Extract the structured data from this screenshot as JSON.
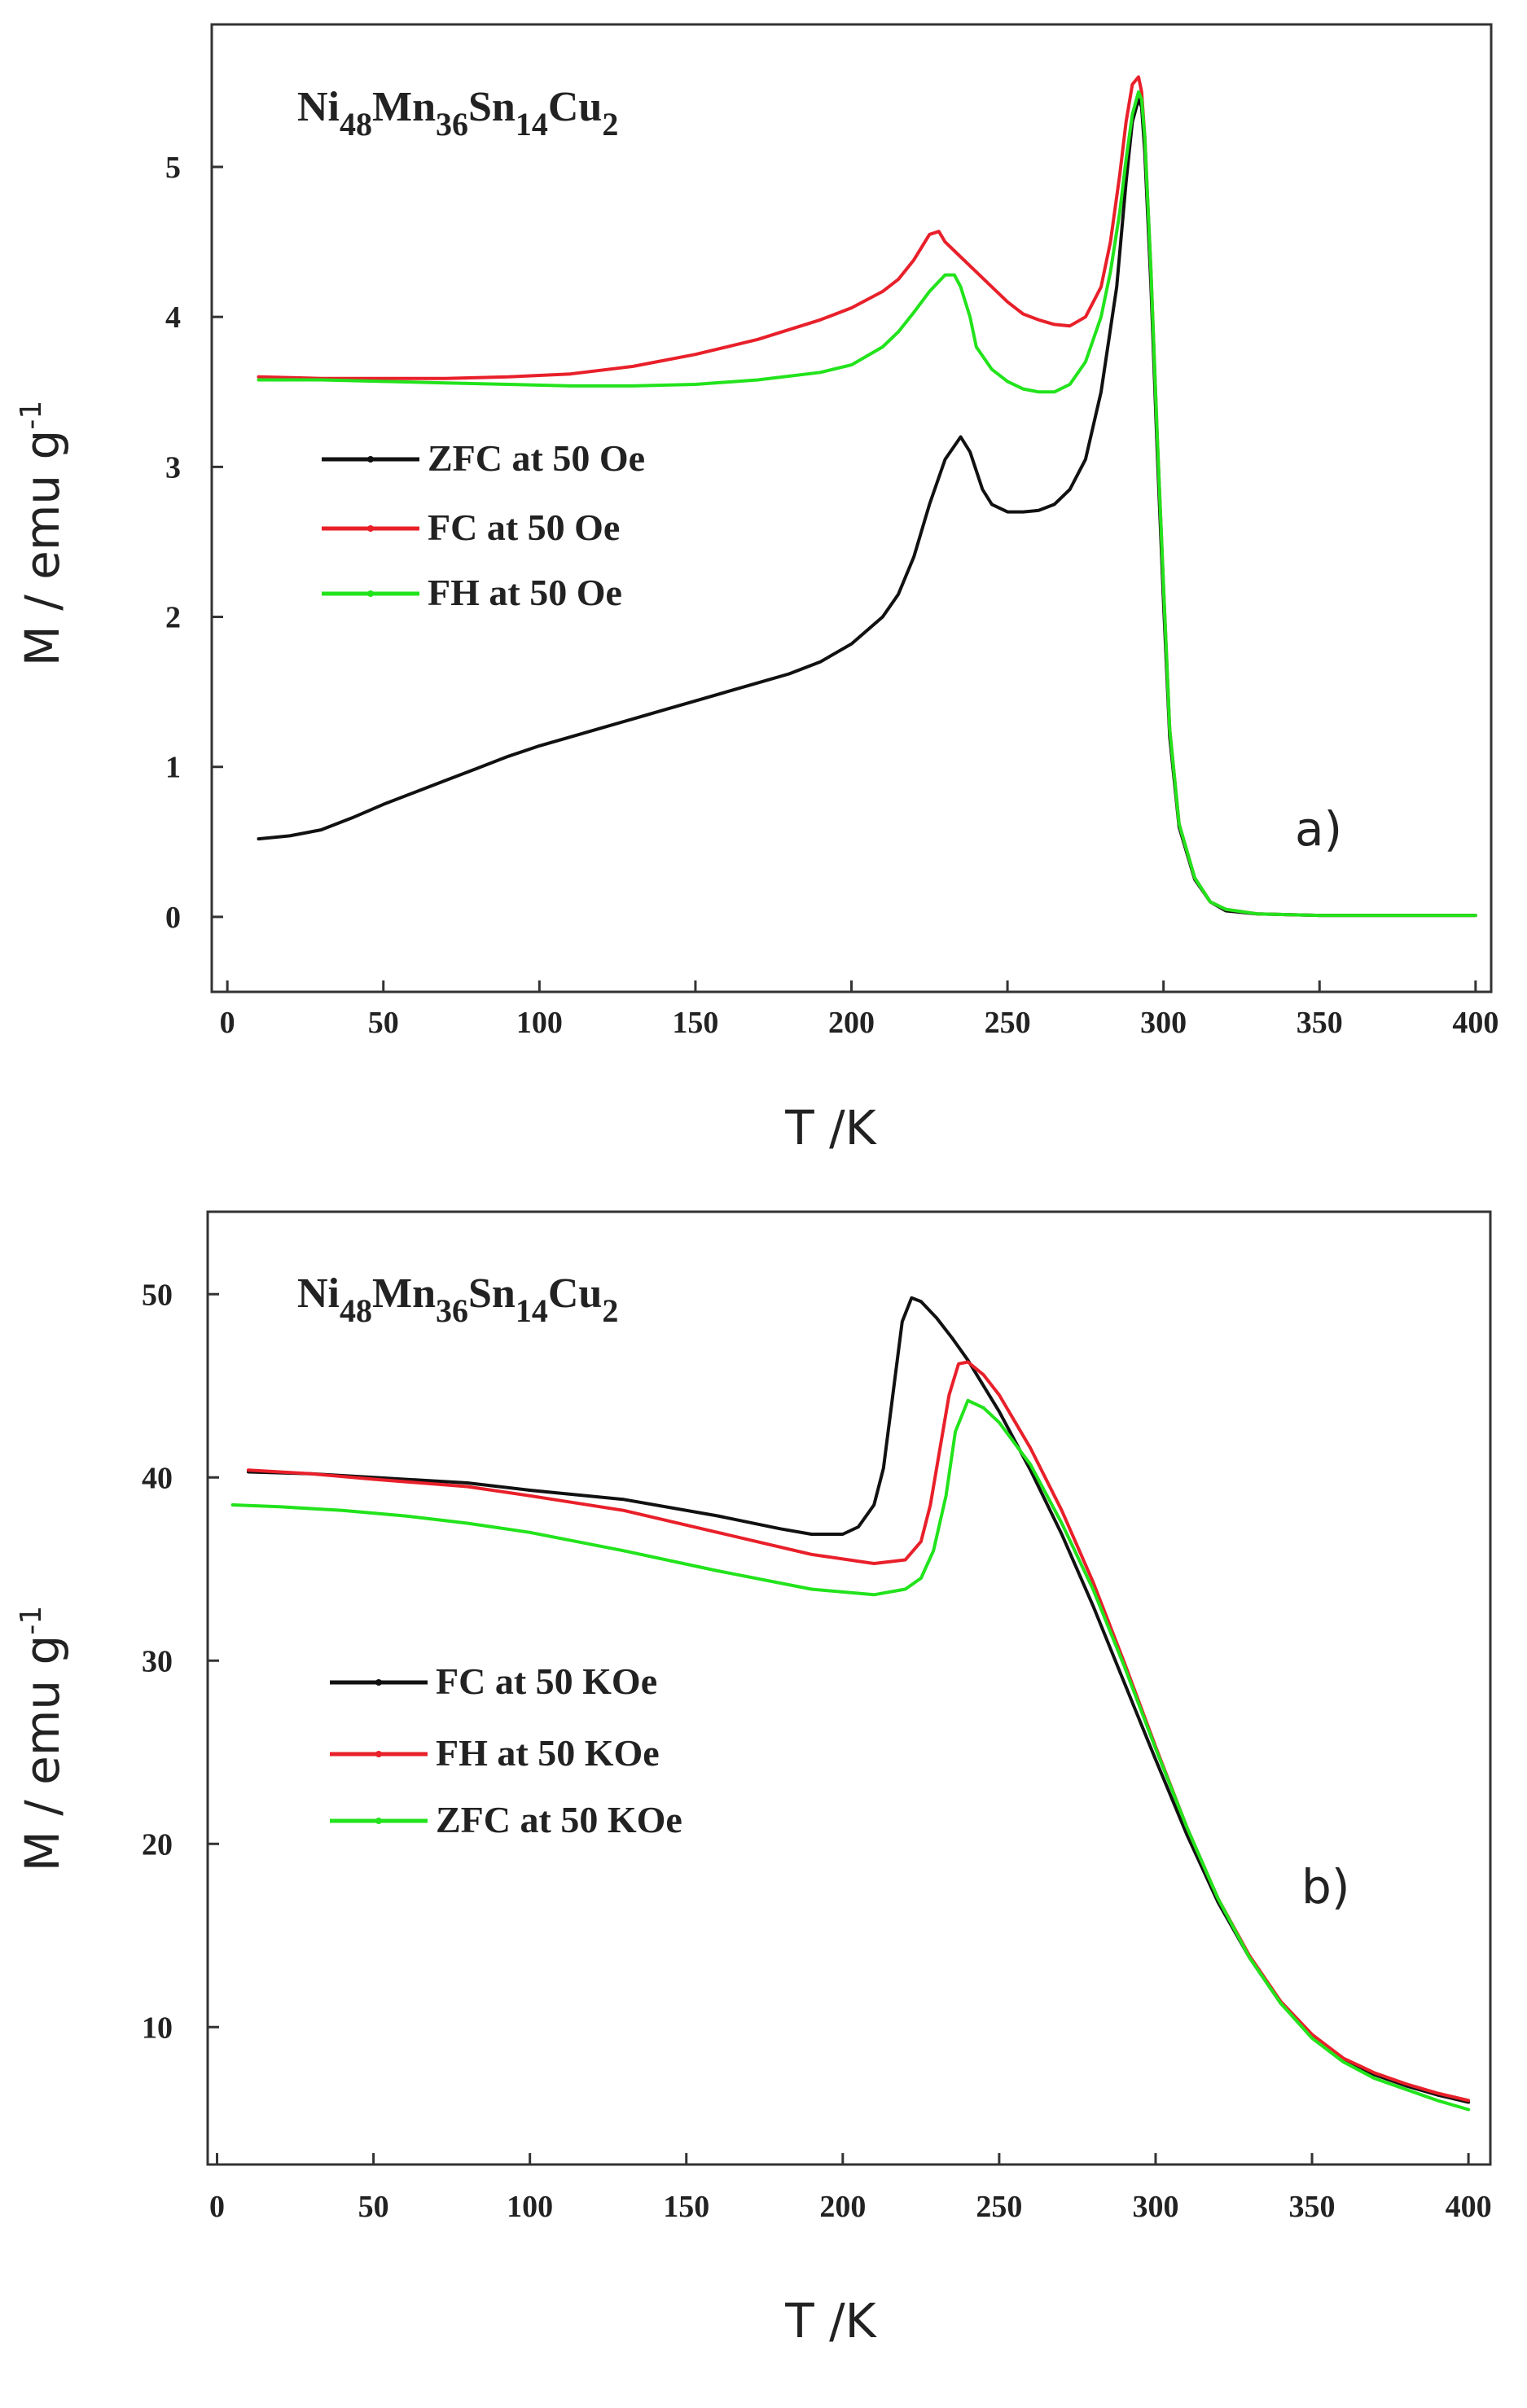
{
  "chart_data": [
    {
      "type": "line",
      "panel_label": "a)",
      "title": {
        "base": [
          "Ni",
          "Mn",
          "Sn",
          "Cu"
        ],
        "subscripts": [
          "48",
          "36",
          "14",
          "2"
        ]
      },
      "xlabel": "T  /K",
      "ylabel": "M  / emu g",
      "ylabel_sup": "-1",
      "xlim": [
        -5,
        405
      ],
      "ylim": [
        -0.5,
        5.95
      ],
      "xticks": [
        0,
        50,
        100,
        150,
        200,
        250,
        300,
        350,
        400
      ],
      "yticks": [
        0,
        1,
        2,
        3,
        4,
        5
      ],
      "legend_position": "middle-left",
      "series": [
        {
          "name": "ZFC at 50 Oe",
          "color": "#111111",
          "x": [
            10,
            20,
            30,
            40,
            50,
            60,
            70,
            80,
            90,
            100,
            110,
            120,
            130,
            140,
            150,
            160,
            170,
            180,
            190,
            200,
            210,
            215,
            220,
            225,
            230,
            235,
            238,
            242,
            245,
            250,
            255,
            260,
            265,
            270,
            275,
            280,
            285,
            288,
            290,
            292,
            293,
            294,
            296,
            298,
            300,
            302,
            305,
            310,
            315,
            320,
            330,
            350,
            400
          ],
          "y": [
            0.52,
            0.54,
            0.58,
            0.66,
            0.75,
            0.83,
            0.91,
            0.99,
            1.07,
            1.14,
            1.2,
            1.26,
            1.32,
            1.38,
            1.44,
            1.5,
            1.56,
            1.62,
            1.7,
            1.82,
            2.0,
            2.15,
            2.4,
            2.75,
            3.05,
            3.2,
            3.1,
            2.85,
            2.75,
            2.7,
            2.7,
            2.71,
            2.75,
            2.85,
            3.05,
            3.5,
            4.2,
            4.9,
            5.3,
            5.45,
            5.4,
            5.1,
            4.2,
            3.1,
            2.1,
            1.2,
            0.6,
            0.25,
            0.1,
            0.04,
            0.02,
            0.01,
            0.01
          ]
        },
        {
          "name": "FC  at 50 Oe",
          "color": "#e8202a",
          "x": [
            10,
            30,
            50,
            70,
            90,
            110,
            130,
            150,
            170,
            190,
            200,
            210,
            215,
            220,
            225,
            228,
            230,
            235,
            240,
            245,
            250,
            255,
            260,
            265,
            270,
            275,
            280,
            283,
            286,
            288,
            290,
            292,
            293,
            294,
            296,
            298,
            300,
            302,
            305,
            310,
            315,
            320,
            330,
            350,
            400
          ],
          "y": [
            3.6,
            3.59,
            3.59,
            3.59,
            3.6,
            3.62,
            3.67,
            3.75,
            3.85,
            3.98,
            4.06,
            4.17,
            4.25,
            4.38,
            4.55,
            4.57,
            4.5,
            4.4,
            4.3,
            4.2,
            4.1,
            4.02,
            3.98,
            3.95,
            3.94,
            4.0,
            4.2,
            4.5,
            4.95,
            5.3,
            5.55,
            5.6,
            5.5,
            5.2,
            4.3,
            3.2,
            2.2,
            1.25,
            0.62,
            0.26,
            0.1,
            0.05,
            0.02,
            0.01,
            0.01
          ]
        },
        {
          "name": "FH  at 50 Oe",
          "color": "#22e31c",
          "x": [
            10,
            30,
            50,
            70,
            90,
            110,
            130,
            150,
            170,
            190,
            200,
            210,
            215,
            220,
            225,
            230,
            233,
            235,
            238,
            240,
            245,
            250,
            255,
            260,
            265,
            270,
            275,
            280,
            283,
            286,
            288,
            290,
            292,
            293,
            294,
            296,
            298,
            300,
            302,
            305,
            310,
            315,
            320,
            330,
            350,
            400
          ],
          "y": [
            3.58,
            3.58,
            3.57,
            3.56,
            3.55,
            3.54,
            3.54,
            3.55,
            3.58,
            3.63,
            3.68,
            3.8,
            3.9,
            4.03,
            4.17,
            4.28,
            4.28,
            4.2,
            4.0,
            3.8,
            3.65,
            3.57,
            3.52,
            3.5,
            3.5,
            3.55,
            3.7,
            4.0,
            4.3,
            4.7,
            5.05,
            5.35,
            5.5,
            5.45,
            5.2,
            4.3,
            3.2,
            2.2,
            1.25,
            0.62,
            0.26,
            0.1,
            0.05,
            0.02,
            0.01,
            0.01
          ]
        }
      ]
    },
    {
      "type": "line",
      "panel_label": "b)",
      "title": {
        "base": [
          "Ni",
          "Mn",
          "Sn",
          "Cu"
        ],
        "subscripts": [
          "48",
          "36",
          "14",
          "2"
        ]
      },
      "xlabel": "T  /K",
      "ylabel": "M  / emu g",
      "ylabel_sup": "-1",
      "xlim": [
        -3,
        407
      ],
      "ylim": [
        2.5,
        54.5
      ],
      "xticks": [
        0,
        50,
        100,
        150,
        200,
        250,
        300,
        350,
        400
      ],
      "yticks": [
        10,
        20,
        30,
        40,
        50
      ],
      "legend_position": "middle-left",
      "series": [
        {
          "name": "FC  at 50 KOe",
          "color": "#111111",
          "x": [
            10,
            30,
            50,
            80,
            100,
            130,
            160,
            180,
            190,
            200,
            205,
            210,
            213,
            216,
            219,
            222,
            225,
            230,
            235,
            240,
            250,
            260,
            270,
            280,
            290,
            300,
            310,
            320,
            330,
            340,
            350,
            360,
            370,
            380,
            390,
            400
          ],
          "y": [
            40.3,
            40.2,
            40.0,
            39.7,
            39.3,
            38.8,
            37.9,
            37.2,
            36.9,
            36.9,
            37.3,
            38.5,
            40.5,
            44.5,
            48.5,
            49.8,
            49.6,
            48.7,
            47.6,
            46.4,
            43.6,
            40.4,
            36.9,
            33.0,
            28.8,
            24.6,
            20.5,
            16.8,
            13.8,
            11.3,
            9.5,
            8.2,
            7.4,
            6.8,
            6.3,
            5.9
          ]
        },
        {
          "name": "FH  at 50 KOe",
          "color": "#e8202a",
          "x": [
            10,
            30,
            50,
            80,
            100,
            130,
            160,
            190,
            210,
            220,
            225,
            228,
            231,
            234,
            237,
            240,
            245,
            250,
            260,
            270,
            280,
            290,
            300,
            310,
            320,
            330,
            340,
            350,
            360,
            370,
            380,
            390,
            400
          ],
          "y": [
            40.4,
            40.2,
            39.9,
            39.5,
            39.0,
            38.2,
            37.0,
            35.8,
            35.3,
            35.5,
            36.5,
            38.5,
            41.5,
            44.5,
            46.2,
            46.3,
            45.6,
            44.5,
            41.6,
            38.2,
            34.3,
            29.9,
            25.3,
            20.9,
            17.0,
            13.9,
            11.4,
            9.6,
            8.3,
            7.5,
            6.9,
            6.4,
            6.0
          ]
        },
        {
          "name": "ZFC at 50 KOe",
          "color": "#22e31c",
          "x": [
            5,
            20,
            40,
            60,
            80,
            100,
            130,
            160,
            190,
            210,
            220,
            225,
            229,
            233,
            236,
            240,
            245,
            250,
            260,
            270,
            280,
            290,
            300,
            310,
            320,
            330,
            340,
            350,
            360,
            370,
            380,
            390,
            400
          ],
          "y": [
            38.5,
            38.4,
            38.2,
            37.9,
            37.5,
            37.0,
            36.0,
            34.9,
            33.9,
            33.6,
            33.9,
            34.5,
            36.0,
            39.0,
            42.5,
            44.2,
            43.8,
            43.0,
            40.7,
            37.5,
            33.9,
            29.7,
            25.2,
            20.9,
            17.0,
            13.8,
            11.3,
            9.4,
            8.1,
            7.2,
            6.6,
            6.0,
            5.5
          ]
        }
      ]
    }
  ]
}
